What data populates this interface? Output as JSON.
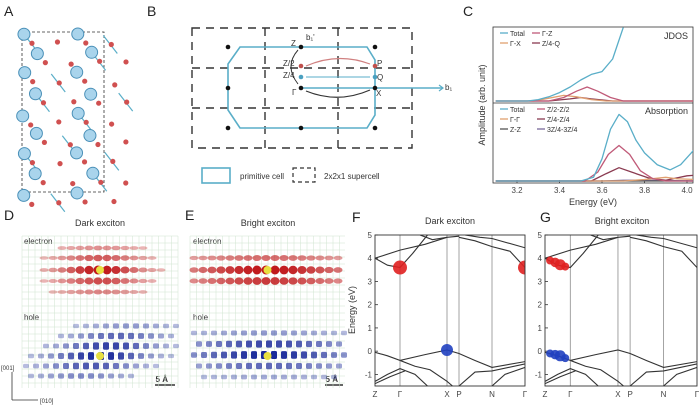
{
  "panels": {
    "A": {
      "label": "A"
    },
    "B": {
      "label": "B",
      "points": {
        "Z": "Z",
        "P": "P",
        "Q": "Q",
        "X": "X",
        "Gamma": "Γ",
        "Z2": "Z/2",
        "Z4": "Z/4"
      },
      "b1": "b₁",
      "b1p": "b₁'",
      "legend": {
        "primitive": "primitive cell",
        "supercell": "2x2x1 supercell"
      },
      "colors": {
        "primitive": "#5aaec8",
        "red": "#c0504d",
        "blue": "#4aa0c0"
      }
    },
    "C": {
      "label": "C"
    },
    "D": {
      "label": "D",
      "title": "Dark exciton",
      "electron": "electron",
      "hole": "hole",
      "scale": "5 Å"
    },
    "E": {
      "label": "E",
      "title": "Bright exciton",
      "electron": "electron",
      "hole": "hole",
      "scale": "5 Å"
    },
    "F": {
      "label": "F",
      "title": "Dark exciton"
    },
    "G": {
      "label": "G",
      "title": "Bright exciton"
    },
    "axes_dir": {
      "up": "[001]",
      "right": "[010]"
    }
  },
  "chart_data": [
    {
      "type": "line",
      "panel": "C",
      "xlabel": "Energy (eV)",
      "ylabel": "Amplitude (arb. unit)",
      "xlim": [
        3.1,
        4.05
      ],
      "xticks": [
        "3.2",
        "3.4",
        "3.6",
        "3.8",
        "4.0"
      ],
      "subplots": [
        {
          "title": "JDOS",
          "series": [
            {
              "name": "Total",
              "color": "#5aaec8",
              "x": [
                3.1,
                3.25,
                3.3,
                3.35,
                3.4,
                3.45,
                3.5,
                3.55,
                3.6,
                3.65,
                3.7
              ],
              "y": [
                0,
                0,
                0.02,
                0.06,
                0.12,
                0.2,
                0.3,
                0.38,
                0.42,
                0.6,
                1.05
              ]
            },
            {
              "name": "Γ-Z",
              "color": "#c05a78",
              "x": [
                3.1,
                3.35,
                3.42,
                3.48,
                3.53,
                3.58,
                3.64,
                3.7,
                4.05
              ],
              "y": [
                0,
                0,
                0.05,
                0.14,
                0.2,
                0.14,
                0.05,
                0,
                0
              ]
            },
            {
              "name": "Γ-X",
              "color": "#e0a070",
              "x": [
                3.1,
                3.28,
                3.35,
                3.42,
                3.48,
                3.55,
                3.62,
                4.05
              ],
              "y": [
                0,
                0,
                0.04,
                0.08,
                0.06,
                0.02,
                0,
                0
              ]
            },
            {
              "name": "Z/4-Q",
              "color": "#8a3a50",
              "x": [
                3.1,
                3.35,
                3.45,
                3.5,
                3.55,
                3.65,
                4.05
              ],
              "y": [
                0,
                0,
                0.03,
                0.05,
                0.03,
                0,
                0
              ]
            }
          ]
        },
        {
          "title": "Absorption",
          "series": [
            {
              "name": "Total",
              "color": "#5aaec8",
              "x": [
                3.1,
                3.5,
                3.56,
                3.6,
                3.64,
                3.68,
                3.72,
                3.76,
                3.8,
                3.86,
                3.92,
                3.97,
                4.02,
                4.05
              ],
              "y": [
                0,
                0,
                0.05,
                0.3,
                0.7,
                0.9,
                0.8,
                0.55,
                0.38,
                0.22,
                0.15,
                0.22,
                0.38,
                0.48
              ]
            },
            {
              "name": "Z/2-Z/2",
              "color": "#c05a78",
              "x": [
                3.1,
                3.52,
                3.58,
                3.63,
                3.68,
                3.73,
                3.78,
                3.84,
                3.9,
                4.05
              ],
              "y": [
                0,
                0,
                0.12,
                0.36,
                0.48,
                0.36,
                0.14,
                0.03,
                0,
                0
              ]
            },
            {
              "name": "Γ-Γ",
              "color": "#e0a070",
              "x": [
                3.1,
                3.7,
                3.8,
                3.9,
                3.95,
                4.05
              ],
              "y": [
                0,
                0,
                0.02,
                0.05,
                0.03,
                0.02
              ]
            },
            {
              "name": "Z/4-Z/4",
              "color": "#8a3a50",
              "x": [
                3.1,
                3.55,
                3.62,
                3.68,
                3.74,
                3.82,
                3.9,
                4.0,
                4.05
              ],
              "y": [
                0,
                0,
                0.1,
                0.18,
                0.12,
                0.04,
                0.01,
                0.07,
                0.08
              ]
            },
            {
              "name": "Z-Z",
              "color": "#555555",
              "x": [
                3.1,
                4.05
              ],
              "y": [
                0,
                0
              ]
            },
            {
              "name": "3Z/4-3Z/4",
              "color": "#7a6a9a",
              "x": [
                3.1,
                3.6,
                3.7,
                3.8,
                4.05
              ],
              "y": [
                0,
                0,
                0.01,
                0.01,
                0
              ]
            }
          ]
        }
      ]
    },
    {
      "type": "line",
      "panel": "F",
      "title": "Dark exciton",
      "ylabel": "Energy (eV)",
      "ylim": [
        -1.5,
        5
      ],
      "yticks": [
        "-1",
        "0",
        "1",
        "2",
        "3",
        "4",
        "5"
      ],
      "kpoints": [
        {
          "label": "Z",
          "k": 0
        },
        {
          "label": "Γ",
          "k": 1
        },
        {
          "label": "X",
          "k": 2.88
        },
        {
          "label": "P",
          "k": 3.36
        },
        {
          "label": "N",
          "k": 4.68
        },
        {
          "label": "Γ",
          "k": 6
        }
      ],
      "markers": [
        {
          "k": 1,
          "E": 3.6,
          "color": "#e02020",
          "weight": 1
        },
        {
          "k": 6,
          "E": 3.6,
          "color": "#e02020",
          "weight": 1
        },
        {
          "k": 2.88,
          "E": 0.05,
          "color": "#2040c0",
          "weight": 0.8
        }
      ]
    },
    {
      "type": "line",
      "panel": "G",
      "title": "Bright exciton",
      "ylabel": "",
      "ylim": [
        -1.5,
        5
      ],
      "yticks": [
        "-1",
        "0",
        "1",
        "2",
        "3",
        "4",
        "5"
      ],
      "kpoints": [
        {
          "label": "Z",
          "k": 0
        },
        {
          "label": "Γ",
          "k": 1
        },
        {
          "label": "X",
          "k": 2.88
        },
        {
          "label": "P",
          "k": 3.36
        },
        {
          "label": "N",
          "k": 4.68
        },
        {
          "label": "Γ",
          "k": 6
        }
      ],
      "markers": [
        {
          "k": 0.2,
          "E": 3.9,
          "color": "#e02020",
          "weight": 0.4
        },
        {
          "k": 0.4,
          "E": 3.82,
          "color": "#e02020",
          "weight": 0.55
        },
        {
          "k": 0.6,
          "E": 3.72,
          "color": "#e02020",
          "weight": 0.7
        },
        {
          "k": 0.8,
          "E": 3.64,
          "color": "#e02020",
          "weight": 0.4
        },
        {
          "k": 0.2,
          "E": -0.1,
          "color": "#2040c0",
          "weight": 0.4
        },
        {
          "k": 0.4,
          "E": -0.15,
          "color": "#2040c0",
          "weight": 0.55
        },
        {
          "k": 0.6,
          "E": -0.2,
          "color": "#2040c0",
          "weight": 0.7
        },
        {
          "k": 0.8,
          "E": -0.3,
          "color": "#2040c0",
          "weight": 0.4
        }
      ]
    }
  ],
  "bands": [
    [
      [
        0,
        4.0
      ],
      [
        0.5,
        3.7
      ],
      [
        1,
        3.6
      ],
      [
        1.5,
        4.2
      ],
      [
        2.1,
        5.0
      ]
    ],
    [
      [
        0,
        4.0
      ],
      [
        1,
        4.35
      ],
      [
        2,
        4.6
      ],
      [
        2.88,
        4.9
      ],
      [
        3.36,
        4.95
      ]
    ],
    [
      [
        1.8,
        5.0
      ],
      [
        2.3,
        4.8
      ],
      [
        2.88,
        4.9
      ]
    ],
    [
      [
        3.36,
        4.9
      ],
      [
        4.0,
        4.75
      ],
      [
        4.68,
        4.5
      ],
      [
        5.4,
        4.3
      ],
      [
        6,
        3.6
      ]
    ],
    [
      [
        3.6,
        5.0
      ],
      [
        4.2,
        4.9
      ],
      [
        4.68,
        4.85
      ],
      [
        6,
        4.45
      ]
    ],
    [
      [
        0,
        -0.05
      ],
      [
        0.5,
        -0.2
      ],
      [
        1,
        -0.4
      ],
      [
        2,
        -0.15
      ],
      [
        2.88,
        0.05
      ],
      [
        3.36,
        -0.1
      ],
      [
        4.0,
        -0.4
      ],
      [
        4.68,
        -0.7
      ],
      [
        6,
        -0.45
      ]
    ],
    [
      [
        0,
        -1.3
      ],
      [
        0.5,
        -1.0
      ],
      [
        1,
        -0.75
      ],
      [
        1.6,
        -1.0
      ],
      [
        2.1,
        -1.5
      ]
    ],
    [
      [
        1,
        -0.4
      ],
      [
        1.6,
        -0.65
      ],
      [
        2.2,
        -0.8
      ],
      [
        2.88,
        -1.3
      ],
      [
        3.1,
        -1.5
      ]
    ],
    [
      [
        3.36,
        -1.5
      ],
      [
        4.0,
        -0.9
      ],
      [
        4.68,
        -0.85
      ],
      [
        6,
        -0.55
      ]
    ],
    [
      [
        4.68,
        -1.5
      ],
      [
        5.2,
        -1.0
      ],
      [
        6,
        -0.7
      ]
    ],
    [
      [
        0,
        -1.4
      ],
      [
        0.6,
        -1.1
      ],
      [
        1.2,
        -0.85
      ]
    ]
  ]
}
